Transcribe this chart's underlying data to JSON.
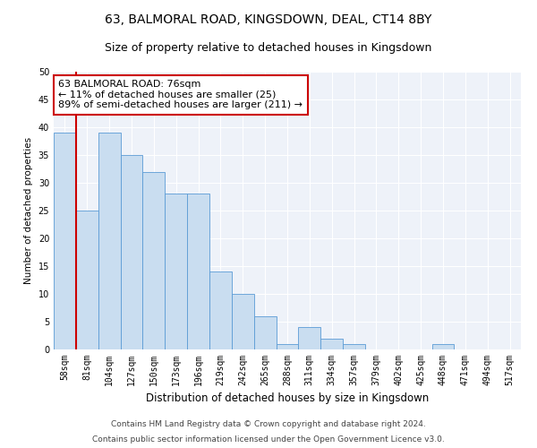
{
  "title1": "63, BALMORAL ROAD, KINGSDOWN, DEAL, CT14 8BY",
  "title2": "Size of property relative to detached houses in Kingsdown",
  "xlabel": "Distribution of detached houses by size in Kingsdown",
  "ylabel": "Number of detached properties",
  "bar_labels": [
    "58sqm",
    "81sqm",
    "104sqm",
    "127sqm",
    "150sqm",
    "173sqm",
    "196sqm",
    "219sqm",
    "242sqm",
    "265sqm",
    "288sqm",
    "311sqm",
    "334sqm",
    "357sqm",
    "379sqm",
    "402sqm",
    "425sqm",
    "448sqm",
    "471sqm",
    "494sqm",
    "517sqm"
  ],
  "bar_values": [
    39,
    25,
    39,
    35,
    32,
    28,
    28,
    14,
    10,
    6,
    1,
    4,
    2,
    1,
    0,
    0,
    0,
    1,
    0,
    0,
    0
  ],
  "bar_color": "#c9ddf0",
  "bar_edge_color": "#5b9bd5",
  "vline_x": 0.5,
  "vline_color": "#cc0000",
  "annotation_line1": "63 BALMORAL ROAD: 76sqm",
  "annotation_line2": "← 11% of detached houses are smaller (25)",
  "annotation_line3": "89% of semi-detached houses are larger (211) →",
  "annotation_box_color": "#ffffff",
  "annotation_box_edge": "#cc0000",
  "ylim": [
    0,
    50
  ],
  "yticks": [
    0,
    5,
    10,
    15,
    20,
    25,
    30,
    35,
    40,
    45,
    50
  ],
  "footer1": "Contains HM Land Registry data © Crown copyright and database right 2024.",
  "footer2": "Contains public sector information licensed under the Open Government Licence v3.0.",
  "bg_color": "#eef2f9",
  "grid_color": "#ffffff",
  "title1_fontsize": 10,
  "title2_fontsize": 9,
  "xlabel_fontsize": 8.5,
  "ylabel_fontsize": 7.5,
  "tick_fontsize": 7,
  "annotation_fontsize": 8,
  "footer_fontsize": 6.5
}
